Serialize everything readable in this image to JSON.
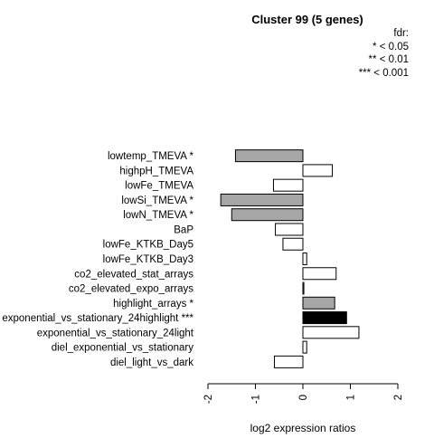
{
  "chart_data": {
    "type": "bar",
    "orientation": "horizontal",
    "title": "Cluster 99 (5 genes)",
    "xlabel": "log2 expression ratios",
    "ylabel": "",
    "xlim": [
      -2,
      2
    ],
    "xticks": [
      "-2",
      "-1",
      "0",
      "1",
      "2"
    ],
    "legend": {
      "title": "fdr:",
      "entries": [
        "* < 0.05",
        "** < 0.01",
        "*** < 0.001"
      ],
      "position": "top-right"
    },
    "categories": [
      "lowtemp_TMEVA *",
      "highpH_TMEVA",
      "lowFe_TMEVA",
      "lowSi_TMEVA *",
      "lowN_TMEVA *",
      "BaP",
      "lowFe_KTKB_Day5",
      "lowFe_KTKB_Day3",
      "co2_elevated_stat_arrays",
      "co2_elevated_expo_arrays",
      "highlight_arrays *",
      "exponential_vs_stationary_24highlight ***",
      "exponential_vs_stationary_24light",
      "diel_exponential_vs_stationary",
      "diel_light_vs_dark"
    ],
    "values": [
      -1.42,
      0.62,
      -0.62,
      -1.73,
      -1.5,
      -0.58,
      -0.42,
      0.08,
      0.7,
      0.02,
      0.67,
      0.92,
      1.18,
      0.08,
      -0.6
    ],
    "significance": [
      "*",
      "",
      "",
      "*",
      "*",
      "",
      "",
      "",
      "",
      "",
      "*",
      "***",
      "",
      "",
      ""
    ],
    "colors": {
      "none": "#ffffff",
      "*": "#a6a6a6",
      "***": "#000000",
      "stroke": "#000000"
    }
  }
}
